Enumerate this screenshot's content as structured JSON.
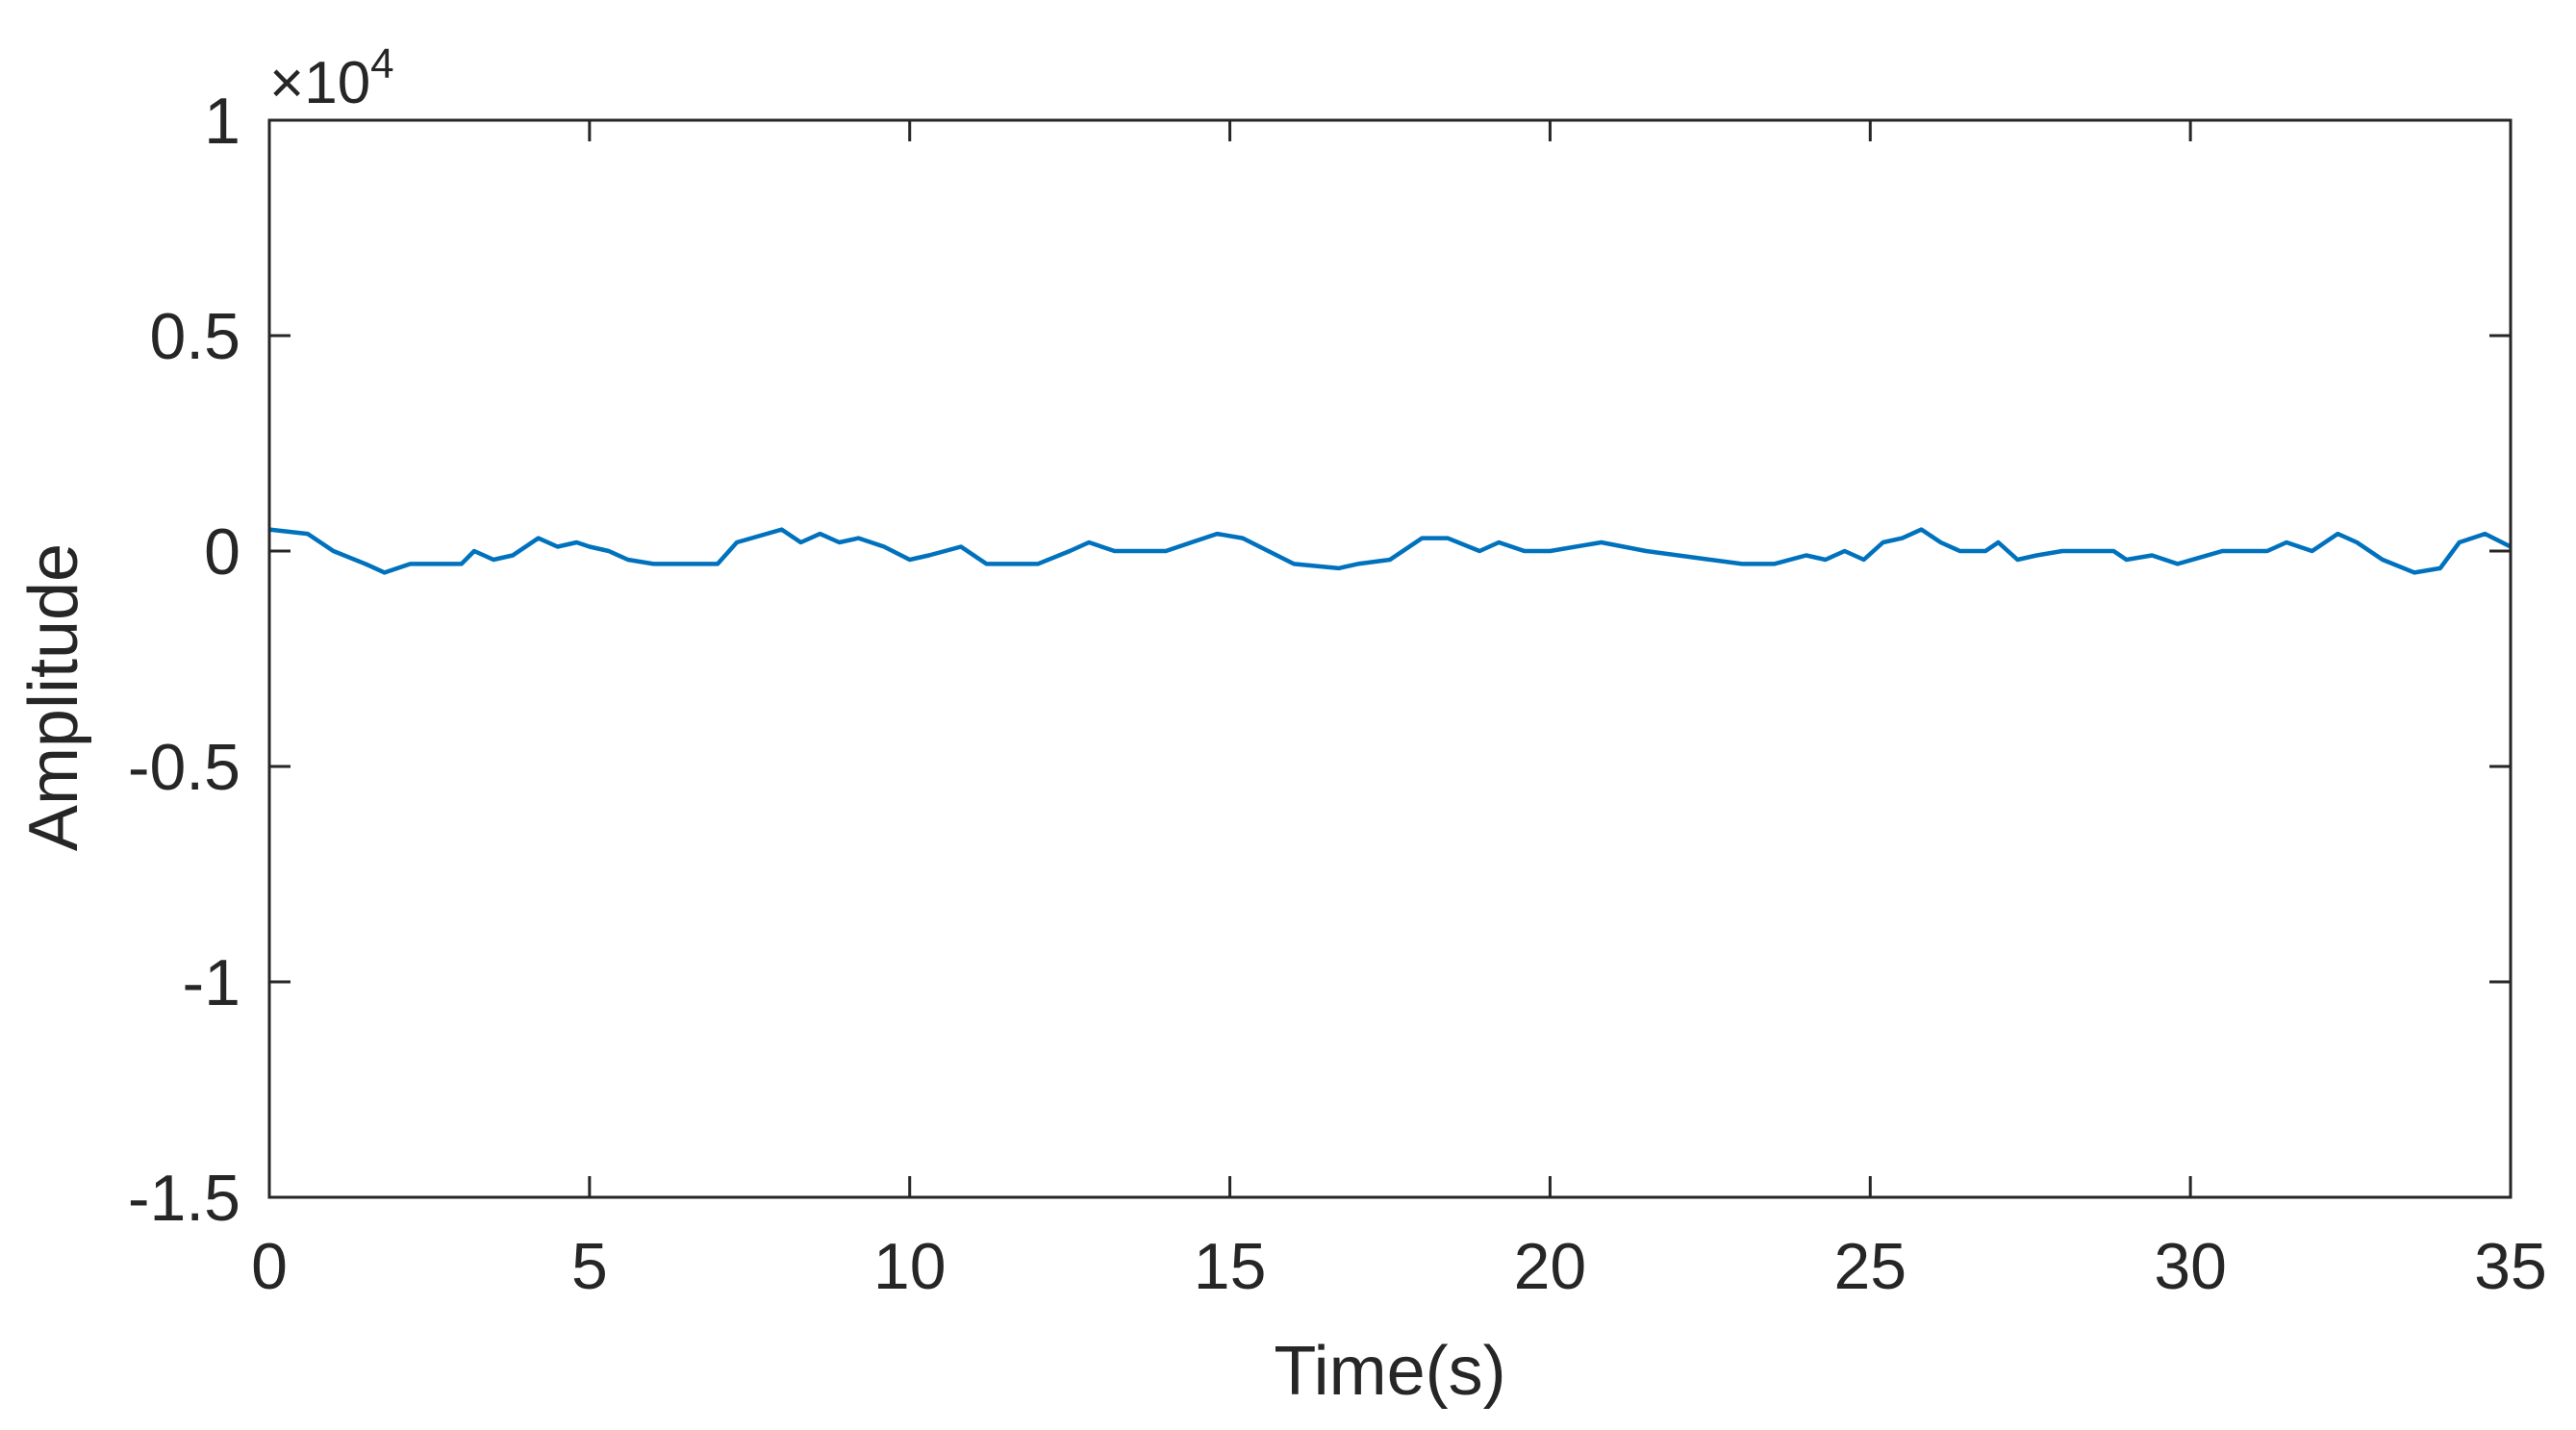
{
  "chart_data": {
    "type": "line",
    "xlabel": "Time(s)",
    "ylabel": "Amplitude",
    "y_exponent_label": "×10",
    "y_exponent_power": "4",
    "xlim": [
      0,
      35
    ],
    "ylim": [
      -1.5,
      1
    ],
    "x_ticks": [
      0,
      5,
      10,
      15,
      20,
      25,
      30,
      35
    ],
    "x_tick_labels": [
      "0",
      "5",
      "10",
      "15",
      "20",
      "25",
      "30",
      "35"
    ],
    "y_ticks": [
      1,
      0.5,
      0,
      -0.5,
      -1,
      -1.5
    ],
    "y_tick_labels": [
      "1",
      "0.5",
      "0",
      "-0.5",
      "-1",
      "-1.5"
    ],
    "grid": false,
    "series": [
      {
        "color": "#0072BD",
        "x": [
          0,
          0.6,
          1.0,
          1.5,
          1.8,
          2.2,
          3.0,
          3.2,
          3.5,
          3.8,
          4.2,
          4.5,
          4.8,
          5.0,
          5.3,
          5.6,
          6.0,
          7.0,
          7.3,
          8.0,
          8.3,
          8.6,
          8.9,
          9.2,
          9.6,
          10.0,
          10.3,
          10.8,
          11.2,
          12.0,
          12.5,
          12.8,
          13.2,
          14.0,
          14.4,
          14.8,
          15.2,
          15.6,
          16.0,
          16.7,
          17.0,
          17.5,
          18.0,
          18.4,
          18.9,
          19.2,
          19.6,
          20.0,
          20.8,
          21.5,
          22.5,
          23.0,
          23.5,
          24.0,
          24.3,
          24.6,
          24.9,
          25.2,
          25.5,
          25.8,
          26.1,
          26.4,
          26.8,
          27.0,
          27.3,
          27.6,
          28.0,
          28.8,
          29.0,
          29.4,
          29.8,
          30.5,
          31.2,
          31.5,
          31.9,
          32.3,
          32.6,
          33.0,
          33.5,
          33.9,
          34.2,
          34.6,
          35.0
        ],
        "y": [
          0.05,
          0.04,
          0.0,
          -0.03,
          -0.05,
          -0.03,
          -0.03,
          0.0,
          -0.02,
          -0.01,
          0.03,
          0.01,
          0.02,
          0.01,
          0.0,
          -0.02,
          -0.03,
          -0.03,
          0.02,
          0.05,
          0.02,
          0.04,
          0.02,
          0.03,
          0.01,
          -0.02,
          -0.01,
          0.01,
          -0.03,
          -0.03,
          0.0,
          0.02,
          0.0,
          0.0,
          0.02,
          0.04,
          0.03,
          0.0,
          -0.03,
          -0.04,
          -0.03,
          -0.02,
          0.03,
          0.03,
          0.0,
          0.02,
          0.0,
          0.0,
          0.02,
          0.0,
          -0.02,
          -0.03,
          -0.03,
          -0.01,
          -0.02,
          0.0,
          -0.02,
          0.02,
          0.03,
          0.05,
          0.02,
          0.0,
          0.0,
          0.02,
          -0.02,
          -0.01,
          0.0,
          0.0,
          -0.02,
          -0.01,
          -0.03,
          0.0,
          0.0,
          0.02,
          0.0,
          0.04,
          0.02,
          -0.02,
          -0.05,
          -0.04,
          0.02,
          0.04,
          0.01
        ]
      }
    ]
  }
}
